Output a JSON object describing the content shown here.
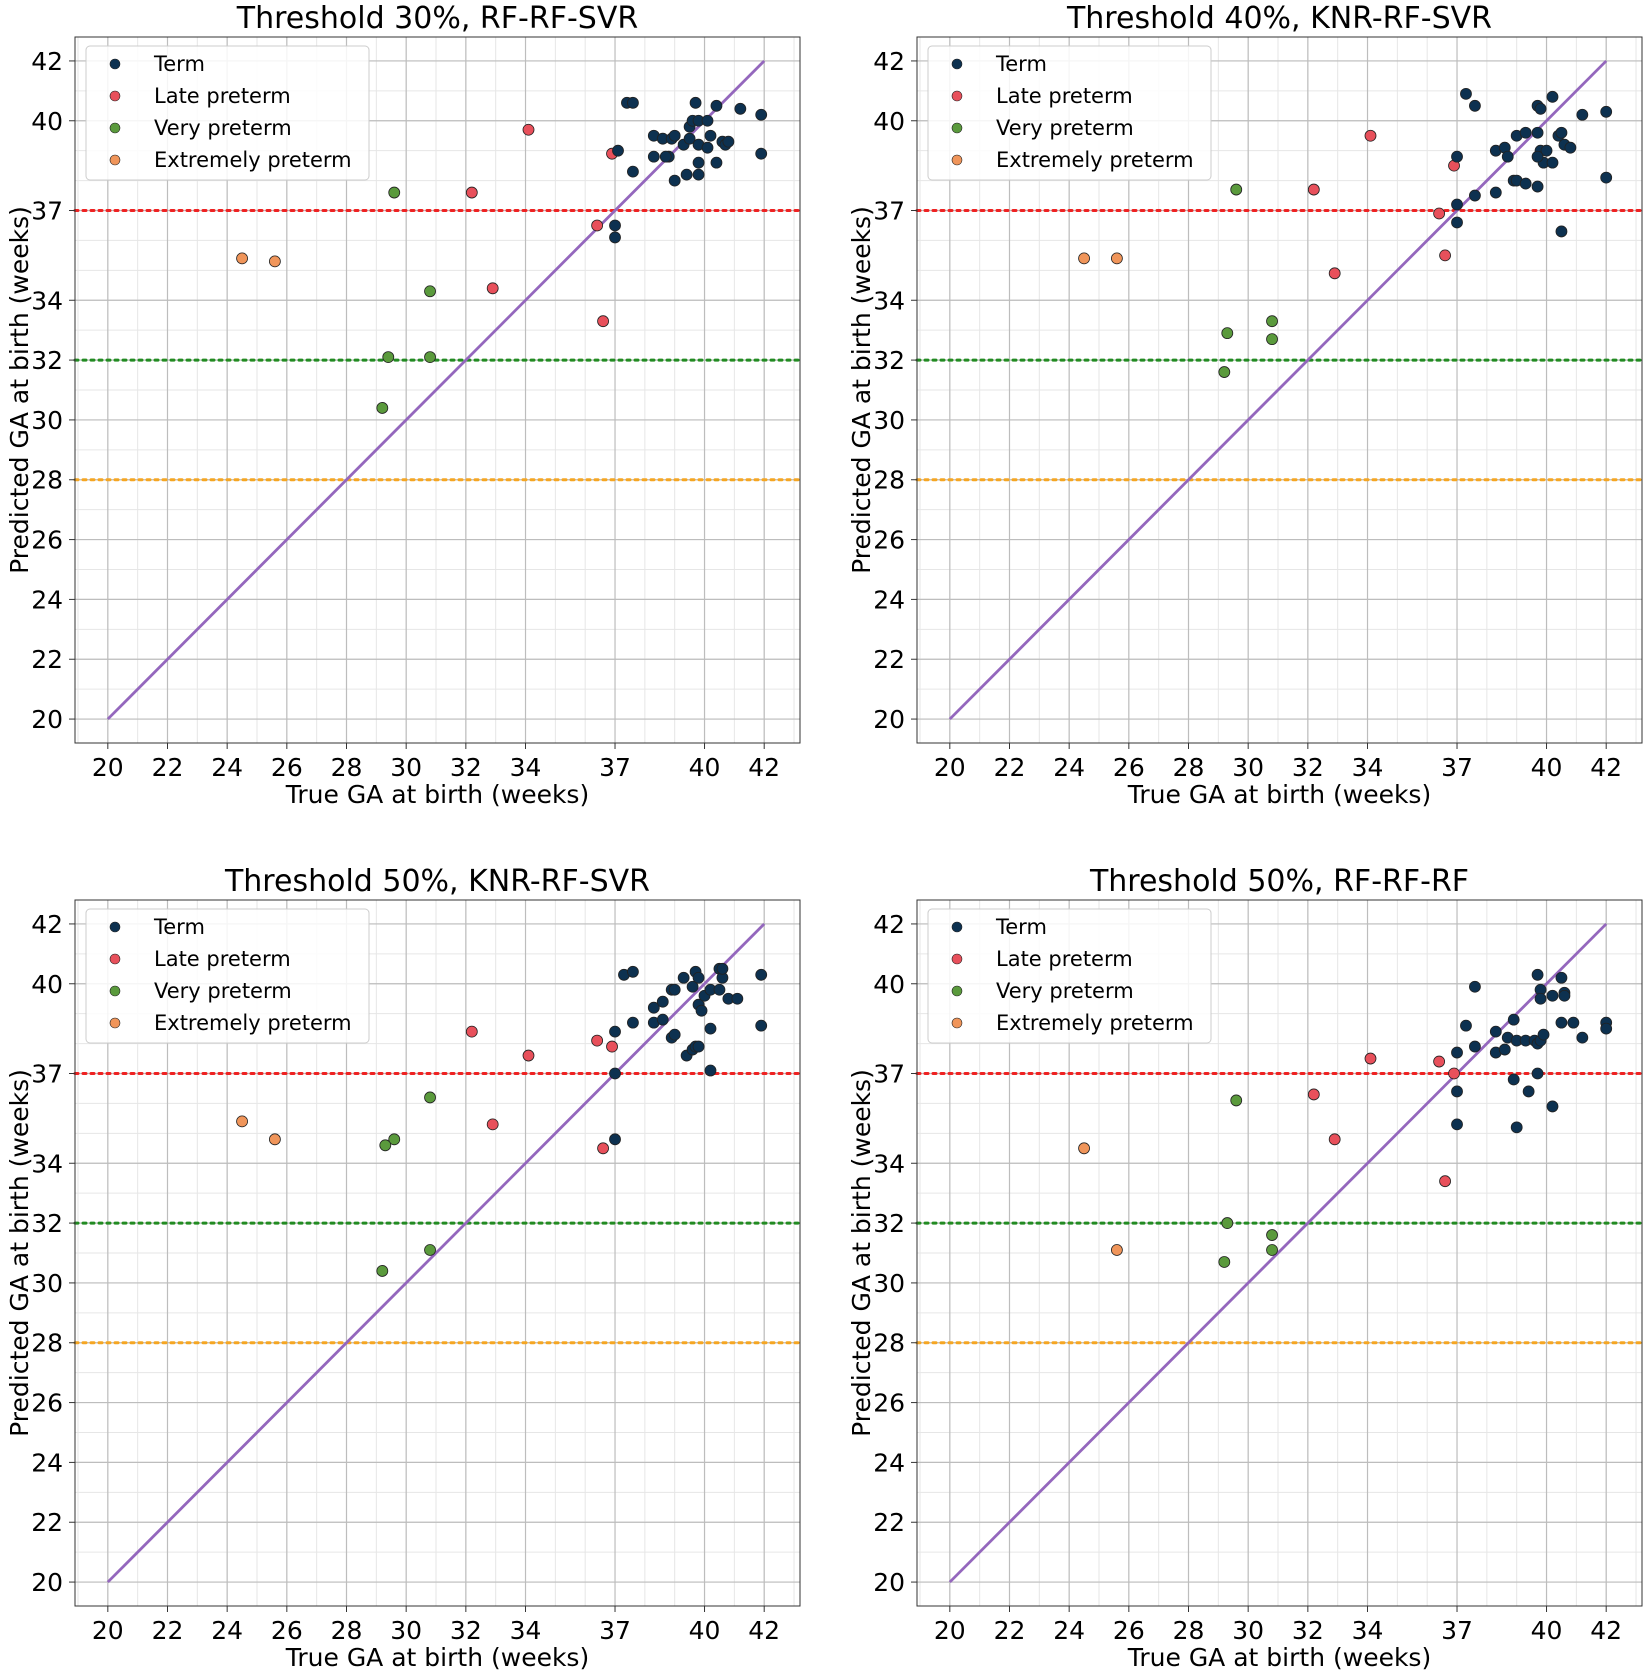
{
  "chart_data": [
    {
      "type": "scatter",
      "title": "Threshold 30%, RF-RF-SVR",
      "xlabel": "True GA at birth (weeks)",
      "ylabel": "Predicted GA at birth (weeks)",
      "xlim": [
        18.9,
        43.2
      ],
      "ylim": [
        19.2,
        42.8
      ],
      "xticks": [
        20,
        22,
        24,
        26,
        28,
        30,
        32,
        34,
        37,
        40,
        42
      ],
      "yticks": [
        20,
        22,
        24,
        26,
        28,
        30,
        32,
        34,
        37,
        40,
        42
      ],
      "grid": true,
      "legend_position": "top-left",
      "reference_lines": [
        {
          "y": 37,
          "color": "#ee2222",
          "style": "dotted"
        },
        {
          "y": 32,
          "color": "#228b22",
          "style": "dotted"
        },
        {
          "y": 28,
          "color": "#f5a623",
          "style": "dotted"
        }
      ],
      "identity_line": {
        "from": [
          20,
          20
        ],
        "to": [
          42,
          42
        ],
        "color": "#9467bd"
      },
      "series": [
        {
          "name": "Term",
          "color": "#0d3150",
          "points": [
            [
              37.4,
              40.6
            ],
            [
              37.6,
              40.6
            ],
            [
              38.3,
              39.5
            ],
            [
              38.6,
              39.4
            ],
            [
              38.9,
              39.4
            ],
            [
              39.0,
              39.5
            ],
            [
              38.3,
              38.8
            ],
            [
              38.8,
              38.8
            ],
            [
              39.3,
              39.2
            ],
            [
              39.5,
              39.8
            ],
            [
              39.6,
              40.0
            ],
            [
              39.8,
              40.0
            ],
            [
              39.7,
              40.6
            ],
            [
              39.5,
              39.4
            ],
            [
              39.8,
              39.2
            ],
            [
              40.1,
              39.1
            ],
            [
              40.2,
              39.5
            ],
            [
              40.1,
              40.0
            ],
            [
              40.4,
              40.5
            ],
            [
              40.6,
              39.3
            ],
            [
              40.7,
              39.2
            ],
            [
              40.8,
              39.3
            ],
            [
              41.2,
              40.4
            ],
            [
              41.9,
              40.2
            ],
            [
              41.9,
              38.9
            ],
            [
              37.1,
              39.0
            ],
            [
              37.0,
              36.5
            ],
            [
              37.0,
              36.1
            ],
            [
              37.6,
              38.3
            ],
            [
              38.7,
              38.8
            ],
            [
              39.0,
              38.0
            ],
            [
              39.4,
              38.2
            ],
            [
              39.8,
              38.2
            ],
            [
              39.8,
              38.6
            ],
            [
              40.4,
              38.6
            ]
          ]
        },
        {
          "name": "Late preterm",
          "color": "#e8505b",
          "points": [
            [
              34.1,
              39.7
            ],
            [
              32.2,
              37.6
            ],
            [
              32.9,
              34.4
            ],
            [
              36.4,
              36.5
            ],
            [
              36.9,
              38.9
            ],
            [
              36.6,
              33.3
            ]
          ]
        },
        {
          "name": "Very preterm",
          "color": "#5a9a3c",
          "points": [
            [
              29.6,
              37.6
            ],
            [
              30.8,
              34.3
            ],
            [
              29.4,
              32.1
            ],
            [
              30.8,
              32.1
            ],
            [
              29.2,
              30.4
            ]
          ]
        },
        {
          "name": "Extremely preterm",
          "color": "#f0955a",
          "points": [
            [
              24.5,
              35.4
            ],
            [
              25.6,
              35.3
            ]
          ]
        }
      ]
    },
    {
      "type": "scatter",
      "title": "Threshold 40%, KNR-RF-SVR",
      "xlabel": "True GA at birth (weeks)",
      "ylabel": "Predicted GA at birth (weeks)",
      "xlim": [
        18.9,
        43.2
      ],
      "ylim": [
        19.2,
        42.8
      ],
      "xticks": [
        20,
        22,
        24,
        26,
        28,
        30,
        32,
        34,
        37,
        40,
        42
      ],
      "yticks": [
        20,
        22,
        24,
        26,
        28,
        30,
        32,
        34,
        37,
        40,
        42
      ],
      "grid": true,
      "legend_position": "top-left",
      "reference_lines": [
        {
          "y": 37,
          "color": "#ee2222",
          "style": "dotted"
        },
        {
          "y": 32,
          "color": "#228b22",
          "style": "dotted"
        },
        {
          "y": 28,
          "color": "#f5a623",
          "style": "dotted"
        }
      ],
      "identity_line": {
        "from": [
          20,
          20
        ],
        "to": [
          42,
          42
        ],
        "color": "#9467bd"
      },
      "series": [
        {
          "name": "Term",
          "color": "#0d3150",
          "points": [
            [
              37.3,
              40.9
            ],
            [
              37.6,
              40.5
            ],
            [
              37.0,
              38.8
            ],
            [
              38.3,
              39.0
            ],
            [
              38.6,
              39.1
            ],
            [
              38.7,
              38.8
            ],
            [
              39.0,
              39.5
            ],
            [
              39.3,
              39.6
            ],
            [
              39.7,
              39.6
            ],
            [
              39.7,
              40.5
            ],
            [
              39.8,
              40.4
            ],
            [
              39.8,
              39.0
            ],
            [
              39.9,
              38.6
            ],
            [
              40.0,
              39.0
            ],
            [
              40.2,
              40.8
            ],
            [
              40.2,
              38.6
            ],
            [
              40.4,
              39.5
            ],
            [
              40.5,
              39.6
            ],
            [
              40.6,
              39.2
            ],
            [
              40.8,
              39.1
            ],
            [
              41.2,
              40.2
            ],
            [
              42.0,
              40.3
            ],
            [
              42.0,
              38.1
            ],
            [
              37.0,
              37.2
            ],
            [
              37.0,
              36.6
            ],
            [
              37.6,
              37.5
            ],
            [
              38.3,
              37.6
            ],
            [
              38.9,
              38.0
            ],
            [
              39.0,
              38.0
            ],
            [
              39.3,
              37.9
            ],
            [
              39.7,
              37.8
            ],
            [
              39.7,
              38.8
            ],
            [
              40.5,
              36.3
            ]
          ]
        },
        {
          "name": "Late preterm",
          "color": "#e8505b",
          "points": [
            [
              34.1,
              39.5
            ],
            [
              32.2,
              37.7
            ],
            [
              32.9,
              34.9
            ],
            [
              36.4,
              36.9
            ],
            [
              36.9,
              38.5
            ],
            [
              36.6,
              35.5
            ]
          ]
        },
        {
          "name": "Very preterm",
          "color": "#5a9a3c",
          "points": [
            [
              29.6,
              37.7
            ],
            [
              30.8,
              33.3
            ],
            [
              29.3,
              32.9
            ],
            [
              30.8,
              32.7
            ],
            [
              29.2,
              31.6
            ]
          ]
        },
        {
          "name": "Extremely preterm",
          "color": "#f0955a",
          "points": [
            [
              24.5,
              35.4
            ],
            [
              25.6,
              35.4
            ]
          ]
        }
      ]
    },
    {
      "type": "scatter",
      "title": "Threshold 50%, KNR-RF-SVR",
      "xlabel": "True GA at birth (weeks)",
      "ylabel": "Predicted GA at birth (weeks)",
      "xlim": [
        18.9,
        43.2
      ],
      "ylim": [
        19.2,
        42.8
      ],
      "xticks": [
        20,
        22,
        24,
        26,
        28,
        30,
        32,
        34,
        37,
        40,
        42
      ],
      "yticks": [
        20,
        22,
        24,
        26,
        28,
        30,
        32,
        34,
        37,
        40,
        42
      ],
      "grid": true,
      "legend_position": "top-left",
      "reference_lines": [
        {
          "y": 37,
          "color": "#ee2222",
          "style": "dotted"
        },
        {
          "y": 32,
          "color": "#228b22",
          "style": "dotted"
        },
        {
          "y": 28,
          "color": "#f5a623",
          "style": "dotted"
        }
      ],
      "identity_line": {
        "from": [
          20,
          20
        ],
        "to": [
          42,
          42
        ],
        "color": "#9467bd"
      },
      "series": [
        {
          "name": "Term",
          "color": "#0d3150",
          "points": [
            [
              37.3,
              40.3
            ],
            [
              37.6,
              40.4
            ],
            [
              37.0,
              38.4
            ],
            [
              37.6,
              38.7
            ],
            [
              38.3,
              39.2
            ],
            [
              38.3,
              38.7
            ],
            [
              38.6,
              38.8
            ],
            [
              38.6,
              39.4
            ],
            [
              38.9,
              39.8
            ],
            [
              39.0,
              39.8
            ],
            [
              39.3,
              40.2
            ],
            [
              39.6,
              39.9
            ],
            [
              39.7,
              40.4
            ],
            [
              39.8,
              40.2
            ],
            [
              39.8,
              39.3
            ],
            [
              39.9,
              39.1
            ],
            [
              40.0,
              39.6
            ],
            [
              40.2,
              39.8
            ],
            [
              40.5,
              39.8
            ],
            [
              40.5,
              40.5
            ],
            [
              40.6,
              40.2
            ],
            [
              40.6,
              40.5
            ],
            [
              40.8,
              39.5
            ],
            [
              41.1,
              39.5
            ],
            [
              41.9,
              40.3
            ],
            [
              41.9,
              38.6
            ],
            [
              37.0,
              37.0
            ],
            [
              37.0,
              34.8
            ],
            [
              38.9,
              38.2
            ],
            [
              39.0,
              38.3
            ],
            [
              39.4,
              37.6
            ],
            [
              39.6,
              37.8
            ],
            [
              39.7,
              37.9
            ],
            [
              39.8,
              37.9
            ],
            [
              40.2,
              37.1
            ],
            [
              40.2,
              38.5
            ]
          ]
        },
        {
          "name": "Late preterm",
          "color": "#e8505b",
          "points": [
            [
              32.2,
              38.4
            ],
            [
              34.1,
              37.6
            ],
            [
              32.9,
              35.3
            ],
            [
              36.4,
              38.1
            ],
            [
              36.9,
              37.9
            ],
            [
              36.6,
              34.5
            ]
          ]
        },
        {
          "name": "Very preterm",
          "color": "#5a9a3c",
          "points": [
            [
              30.8,
              36.2
            ],
            [
              29.6,
              34.8
            ],
            [
              29.3,
              34.6
            ],
            [
              30.8,
              31.1
            ],
            [
              29.2,
              30.4
            ]
          ]
        },
        {
          "name": "Extremely preterm",
          "color": "#f0955a",
          "points": [
            [
              24.5,
              35.4
            ],
            [
              25.6,
              34.8
            ]
          ]
        }
      ]
    },
    {
      "type": "scatter",
      "title": "Threshold 50%, RF-RF-RF",
      "xlabel": "True GA at birth (weeks)",
      "ylabel": "Predicted GA at birth (weeks)",
      "xlim": [
        18.9,
        43.2
      ],
      "ylim": [
        19.2,
        42.8
      ],
      "xticks": [
        20,
        22,
        24,
        26,
        28,
        30,
        32,
        34,
        37,
        40,
        42
      ],
      "yticks": [
        20,
        22,
        24,
        26,
        28,
        30,
        32,
        34,
        37,
        40,
        42
      ],
      "grid": true,
      "legend_position": "top-left",
      "reference_lines": [
        {
          "y": 37,
          "color": "#ee2222",
          "style": "dotted"
        },
        {
          "y": 32,
          "color": "#228b22",
          "style": "dotted"
        },
        {
          "y": 28,
          "color": "#f5a623",
          "style": "dotted"
        }
      ],
      "identity_line": {
        "from": [
          20,
          20
        ],
        "to": [
          42,
          42
        ],
        "color": "#9467bd"
      },
      "series": [
        {
          "name": "Term",
          "color": "#0d3150",
          "points": [
            [
              37.6,
              39.9
            ],
            [
              37.3,
              38.6
            ],
            [
              37.0,
              37.7
            ],
            [
              37.6,
              37.9
            ],
            [
              38.3,
              38.4
            ],
            [
              38.3,
              37.7
            ],
            [
              38.6,
              37.8
            ],
            [
              38.7,
              38.2
            ],
            [
              38.9,
              38.8
            ],
            [
              39.0,
              38.1
            ],
            [
              39.3,
              38.1
            ],
            [
              39.6,
              38.1
            ],
            [
              39.7,
              38.0
            ],
            [
              39.8,
              38.1
            ],
            [
              39.7,
              40.3
            ],
            [
              39.8,
              39.8
            ],
            [
              39.8,
              39.5
            ],
            [
              39.9,
              38.3
            ],
            [
              40.2,
              39.6
            ],
            [
              40.5,
              40.2
            ],
            [
              40.6,
              39.7
            ],
            [
              40.6,
              39.6
            ],
            [
              40.5,
              38.7
            ],
            [
              40.9,
              38.7
            ],
            [
              41.2,
              38.2
            ],
            [
              42.0,
              38.7
            ],
            [
              42.0,
              38.5
            ],
            [
              37.0,
              36.4
            ],
            [
              37.0,
              35.3
            ],
            [
              38.9,
              36.8
            ],
            [
              39.0,
              35.2
            ],
            [
              39.4,
              36.4
            ],
            [
              39.7,
              37.0
            ],
            [
              40.2,
              35.9
            ]
          ]
        },
        {
          "name": "Late preterm",
          "color": "#e8505b",
          "points": [
            [
              34.1,
              37.5
            ],
            [
              32.2,
              36.3
            ],
            [
              32.9,
              34.8
            ],
            [
              36.4,
              37.4
            ],
            [
              36.9,
              37.0
            ],
            [
              36.6,
              33.4
            ]
          ]
        },
        {
          "name": "Very preterm",
          "color": "#5a9a3c",
          "points": [
            [
              29.6,
              36.1
            ],
            [
              29.3,
              32.0
            ],
            [
              30.8,
              31.6
            ],
            [
              30.8,
              31.1
            ],
            [
              29.2,
              30.7
            ]
          ]
        },
        {
          "name": "Extremely preterm",
          "color": "#f0955a",
          "points": [
            [
              24.5,
              34.5
            ],
            [
              25.6,
              31.1
            ]
          ]
        }
      ]
    }
  ]
}
